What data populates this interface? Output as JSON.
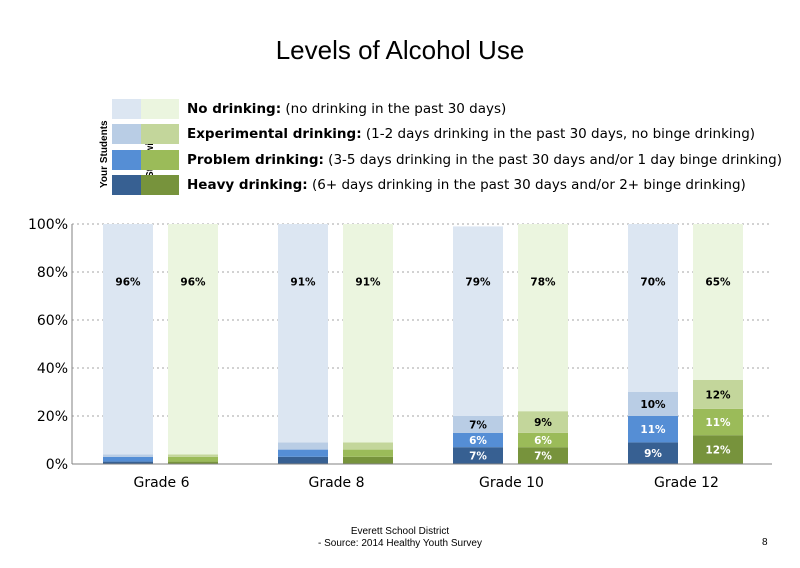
{
  "title": "Levels of Alcohol Use",
  "legend": {
    "group_labels": [
      "Your Students",
      "Statewide"
    ],
    "items": [
      {
        "label": "No drinking:",
        "desc": " (no drinking in the past 30 days)",
        "your_color": "#dce6f2",
        "state_color": "#ebf5df"
      },
      {
        "label": "Experimental drinking:",
        "desc": " (1-2 days drinking in the past 30 days, no binge drinking)",
        "your_color": "#b9cde5",
        "state_color": "#c3d69b"
      },
      {
        "label": "Problem drinking:",
        "desc": " (3-5 days drinking in the past 30 days and/or 1 day binge drinking)",
        "your_color": "#558ed5",
        "state_color": "#9bbb59"
      },
      {
        "label": "Heavy drinking:",
        "desc": " (6+ days drinking in the past 30 days and/or 2+ binge drinking)",
        "your_color": "#376092",
        "state_color": "#77933c"
      }
    ]
  },
  "chart_data": {
    "type": "bar",
    "stacked": true,
    "categories": [
      "Grade 6",
      "Grade 8",
      "Grade 10",
      "Grade 12"
    ],
    "groups": [
      "Your Students",
      "Statewide"
    ],
    "series": [
      {
        "name": "No drinking",
        "your_students": [
          96,
          91,
          79,
          70
        ],
        "statewide": [
          96,
          91,
          78,
          65
        ]
      },
      {
        "name": "Experimental drinking",
        "your_students": [
          1,
          3,
          7,
          10
        ],
        "statewide": [
          1,
          3,
          9,
          12
        ]
      },
      {
        "name": "Problem drinking",
        "your_students": [
          2,
          3,
          6,
          11
        ],
        "statewide": [
          2,
          3,
          6,
          11
        ]
      },
      {
        "name": "Heavy drinking",
        "your_students": [
          1,
          3,
          7,
          9
        ],
        "statewide": [
          1,
          3,
          7,
          12
        ]
      }
    ],
    "data_labels": {
      "No drinking": {
        "your_students": [
          "96%",
          "91%",
          "79%",
          "70%"
        ],
        "statewide": [
          "96%",
          "91%",
          "78%",
          "65%"
        ]
      },
      "Experimental drinking": {
        "your_students": [
          "",
          "",
          "7%",
          "10%"
        ],
        "statewide": [
          "",
          "",
          "9%",
          "12%"
        ]
      },
      "Problem drinking": {
        "your_students": [
          "",
          "",
          "6%",
          "11%"
        ],
        "statewide": [
          "",
          "",
          "6%",
          "11%"
        ]
      },
      "Heavy drinking": {
        "your_students": [
          "",
          "",
          "7%",
          "9%"
        ],
        "statewide": [
          "",
          "",
          "7%",
          "12%"
        ]
      }
    },
    "y_ticks": [
      "0%",
      "20%",
      "40%",
      "60%",
      "80%",
      "100%"
    ],
    "ylim": [
      0,
      100
    ],
    "grid": true
  },
  "footer": {
    "line1": "Everett School District",
    "line2": "- Source: 2014 Healthy Youth Survey"
  },
  "page_number": "8"
}
